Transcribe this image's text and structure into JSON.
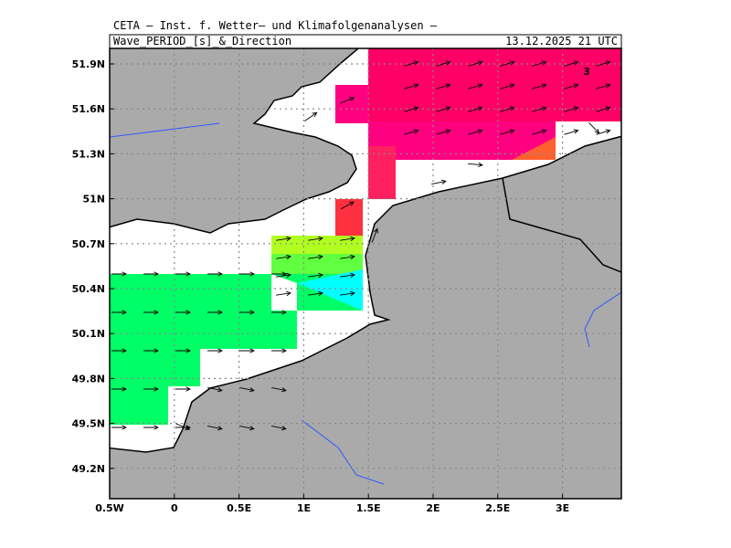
{
  "header": {
    "source": "CETA — Inst. f. Wetter— und Klimafolgenanalysen —",
    "title": "Wave_PERIOD_[s]_&_Direction",
    "timestamp": "13.12.2025 21 UTC"
  },
  "map": {
    "lon_labels": [
      "0.5W",
      "0",
      "0.5E",
      "1E",
      "1.5E",
      "2E",
      "2.5E",
      "3E"
    ],
    "lat_labels": [
      "51.9N",
      "51.6N",
      "51.3N",
      "51N",
      "50.7N",
      "50.4N",
      "50.1N",
      "49.8N",
      "49.5N",
      "49.2N"
    ],
    "contour_label": "3"
  }
}
